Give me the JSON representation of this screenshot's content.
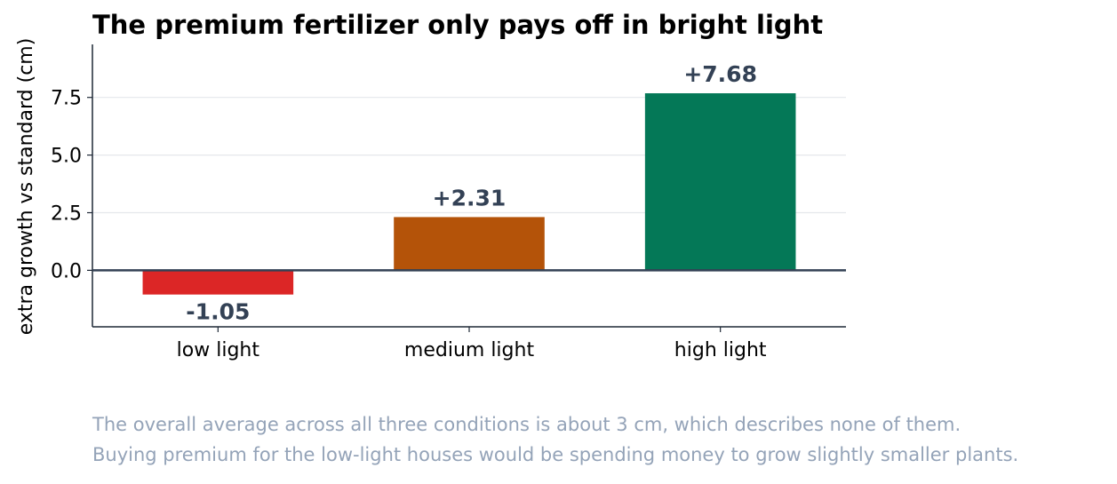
{
  "chart_data": {
    "type": "bar",
    "title": "The premium fertilizer only pays off in bright light",
    "xlabel": "",
    "ylabel": "extra growth vs standard (cm)",
    "categories": [
      "low light",
      "medium light",
      "high light"
    ],
    "values": [
      -1.05,
      2.31,
      7.68
    ],
    "value_labels": [
      "-1.05",
      "+2.31",
      "+7.68"
    ],
    "bar_colors": [
      "#dc2626",
      "#b45309",
      "#047857"
    ],
    "ylim": [
      -2.45,
      9.8
    ],
    "yticks": [
      0.0,
      2.5,
      5.0,
      7.5
    ],
    "ytick_labels": [
      "0.0",
      "2.5",
      "5.0",
      "7.5"
    ],
    "grid": "horizontal",
    "legend": "none",
    "colors": {
      "axis": "#1f2937",
      "zero_line": "#334155",
      "grid": "#e5e7eb",
      "data_label": "#334155"
    }
  },
  "notes": [
    "The overall average across all three conditions is about 3 cm, which describes none of them.",
    "Buying premium for the low-light houses would be spending money to grow slightly smaller plants."
  ]
}
